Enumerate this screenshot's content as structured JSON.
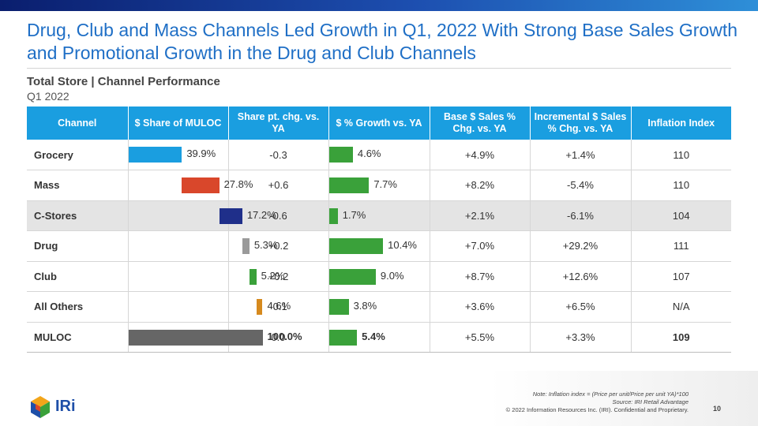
{
  "headline": "Drug, Club and Mass Channels Led Growth in Q1, 2022 With Strong Base Sales Growth and Promotional Growth in the Drug and Club Channels",
  "subtitle": "Total Store | Channel Performance",
  "period": "Q1 2022",
  "table": {
    "headers": {
      "channel": "Channel",
      "share": "$ Share of MULOC",
      "share_chg": "Share pt. chg. vs. YA",
      "growth": "$ % Growth vs. YA",
      "base": "Base $ Sales % Chg. vs. YA",
      "incremental": "Incremental $ Sales % Chg. vs. YA",
      "inflation": "Inflation Index"
    },
    "rows": [
      {
        "channel": "Grocery",
        "share": 39.9,
        "share_label": "39.9%",
        "share_color": "#1a9ee0",
        "share_chg": "-0.3",
        "growth": 4.6,
        "growth_label": "4.6%",
        "base": "+4.9%",
        "incremental": "+1.4%",
        "inflation": "110",
        "share_chg_sign": "neg",
        "inc_sign": "pos"
      },
      {
        "channel": "Mass",
        "share": 27.8,
        "share_label": "27.8%",
        "share_color": "#d9472b",
        "share_chg": "+0.6",
        "growth": 7.7,
        "growth_label": "7.7%",
        "base": "+8.2%",
        "incremental": "-5.4%",
        "inflation": "110",
        "share_chg_sign": "pos",
        "inc_sign": "neg"
      },
      {
        "channel": "C-Stores",
        "share": 17.2,
        "share_label": "17.2%",
        "share_color": "#1f2f8a",
        "share_chg": "-0.6",
        "growth": 1.7,
        "growth_label": "1.7%",
        "base": "+2.1%",
        "incremental": "-6.1%",
        "inflation": "104",
        "share_chg_sign": "neg",
        "inc_sign": "neg",
        "shaded": true
      },
      {
        "channel": "Drug",
        "share": 5.3,
        "share_label": "5.3%",
        "share_color": "#9a9a9a",
        "share_chg": "+0.2",
        "growth": 10.4,
        "growth_label": "10.4%",
        "base": "+7.0%",
        "incremental": "+29.2%",
        "inflation": "111",
        "share_chg_sign": "pos",
        "inc_sign": "pos"
      },
      {
        "channel": "Club",
        "share": 5.2,
        "share_label": "5.2%",
        "share_color": "#3aa13a",
        "share_chg": "+0.2",
        "growth": 9.0,
        "growth_label": "9.0%",
        "base": "+8.7%",
        "incremental": "+12.6%",
        "inflation": "107",
        "share_chg_sign": "pos",
        "inc_sign": "pos"
      },
      {
        "channel": "All Others",
        "share": 4.6,
        "share_label": "4.6%",
        "share_color": "#d68a1e",
        "share_chg": "-0.1",
        "growth": 3.8,
        "growth_label": "3.8%",
        "base": "+3.6%",
        "incremental": "+6.5%",
        "inflation": "N/A",
        "share_chg_sign": "neg",
        "inc_sign": "pos"
      },
      {
        "channel": "MULOC",
        "share": 100.0,
        "share_label": "100.0%",
        "share_color": "#666666",
        "share_chg": "0.0",
        "growth": 5.4,
        "growth_label": "5.4%",
        "base": "+5.5%",
        "incremental": "+3.3%",
        "inflation": "109",
        "share_chg_sign": "neu",
        "inc_sign": "pos",
        "total": true
      }
    ],
    "growth_color": "#3aa13a"
  },
  "footnote": {
    "line1": "Note: Inflation index = (Price per unit/Price per unit YA)*100",
    "line2": "Source: IRI Retail Advantage"
  },
  "copyright": "© 2022 Information Resources Inc. (IRI). Confidential and Proprietary.",
  "page_number": "10",
  "logo_text": "IRi"
}
